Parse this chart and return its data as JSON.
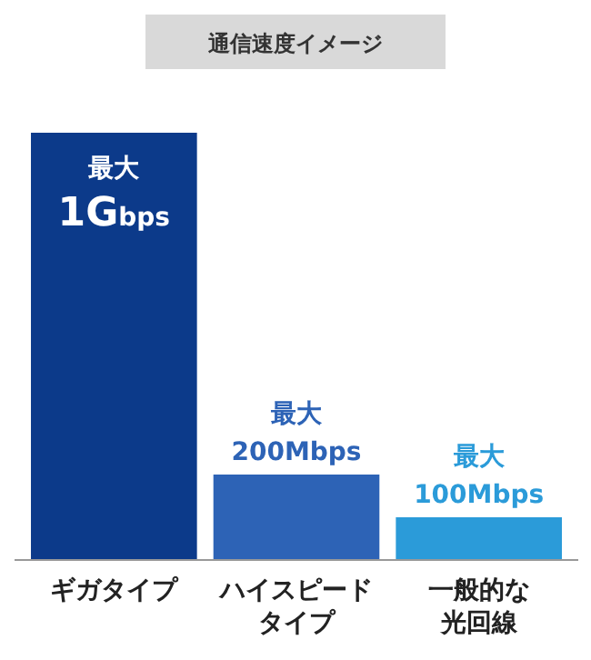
{
  "chart_data": {
    "type": "bar",
    "title": "通信速度イメージ",
    "categories": [
      "ギガタイプ",
      "ハイスピードタイプ",
      "一般的な光回線"
    ],
    "values": [
      1000,
      200,
      100
    ],
    "colors": [
      "#0c3a8a",
      "#2d63b6",
      "#2b9bd9"
    ],
    "value_labels": [
      "最大 1Gbps",
      "最大 200Mbps",
      "最大 100Mbps"
    ]
  }
}
